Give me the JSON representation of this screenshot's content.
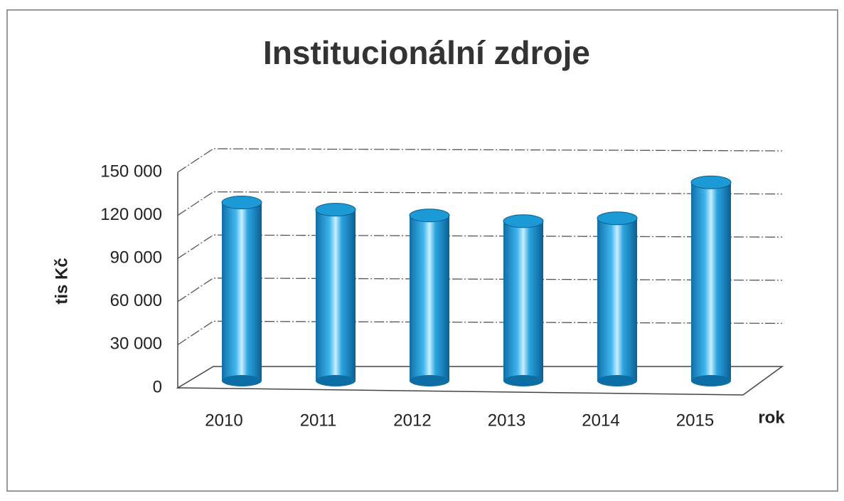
{
  "chart_data": {
    "type": "bar",
    "title": "Institucionální zdroje",
    "x_label": "rok",
    "y_label": "tis Kč",
    "categories": [
      "2010",
      "2011",
      "2012",
      "2013",
      "2014",
      "2015"
    ],
    "values": [
      123000,
      118000,
      114000,
      110000,
      112000,
      137000
    ],
    "color": "#1b9ad6",
    "ylim": [
      0,
      150000
    ],
    "yticks": [
      0,
      {
        "value": 30000,
        "label": "30 000"
      },
      {
        "value": 60000,
        "label": "60 000"
      },
      {
        "value": 90000,
        "label": "90 000"
      },
      {
        "value": 120000,
        "label": "120 000"
      },
      {
        "value": 150000,
        "label": "150 000"
      }
    ],
    "grid": true
  }
}
